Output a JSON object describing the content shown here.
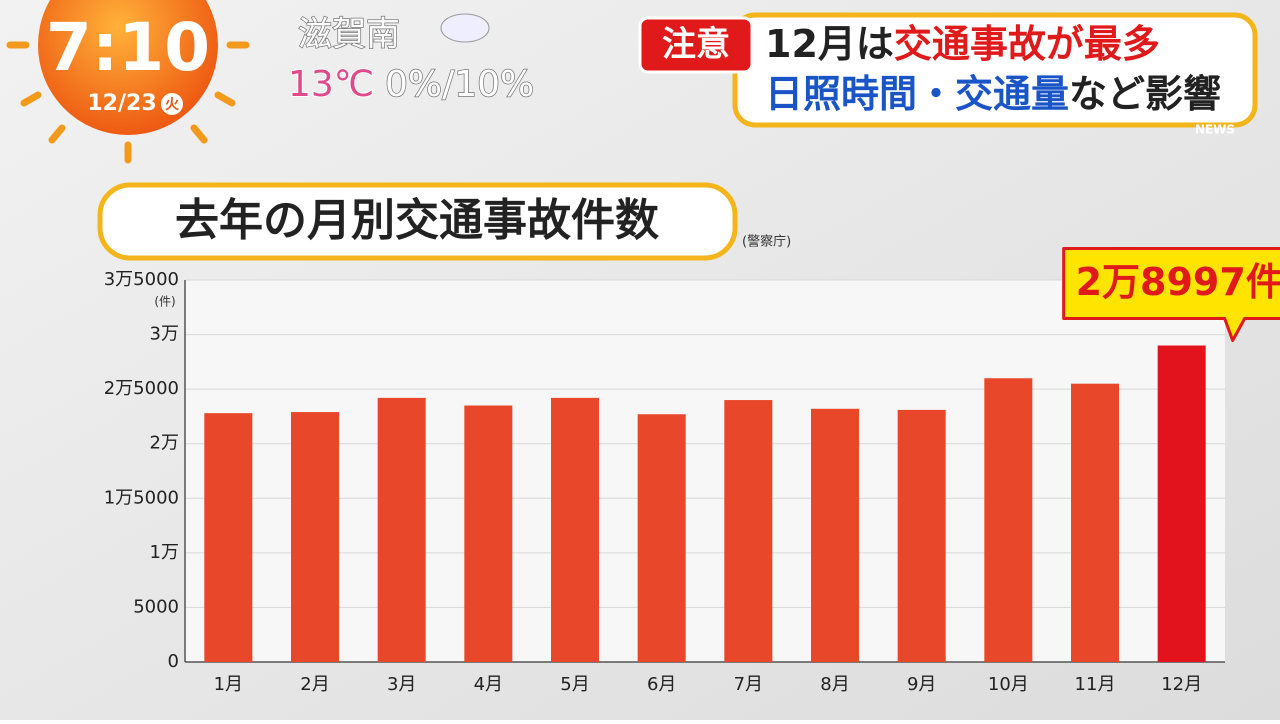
{
  "overlay": {
    "time": "7:10",
    "date": "12/23",
    "weekday": "火",
    "location": "滋賀南",
    "temperature": "13℃",
    "precipitation": "0%/10%",
    "badge": "注意",
    "headline": [
      [
        "12月は",
        "交通事故が最多"
      ],
      [
        "日照時間・交通量",
        "など影響"
      ]
    ],
    "news": "NEWS"
  },
  "chart_data": {
    "type": "bar",
    "title": "去年の月別交通事故件数",
    "source": "(警察庁)",
    "y_label": "(件)",
    "categories": [
      "1月",
      "2月",
      "3月",
      "4月",
      "5月",
      "6月",
      "7月",
      "8月",
      "9月",
      "10月",
      "11月",
      "12月"
    ],
    "values": [
      22800,
      22900,
      24200,
      23500,
      24200,
      22700,
      24000,
      23200,
      23100,
      26000,
      25500,
      28997
    ],
    "value_labels": [
      null,
      null,
      null,
      null,
      null,
      null,
      null,
      null,
      null,
      null,
      null,
      "2万8997件"
    ],
    "colors": [
      "#e8472a",
      "#e8472a",
      "#e8472a",
      "#e8472a",
      "#e8472a",
      "#e8472a",
      "#e8472a",
      "#e8472a",
      "#e8472a",
      "#e8472a",
      "#e8472a",
      "#e3131d"
    ],
    "ylim": [
      0,
      35000
    ],
    "yticks": [
      0,
      5000,
      {
        "value": 10000,
        "label": "1万"
      },
      {
        "value": 15000,
        "label": "1万5000"
      },
      {
        "value": 20000,
        "label": "2万"
      },
      {
        "value": 25000,
        "label": "2万5000"
      },
      {
        "value": 30000,
        "label": "3万"
      },
      {
        "value": 35000,
        "label": "3万5000"
      }
    ],
    "grid": true
  }
}
